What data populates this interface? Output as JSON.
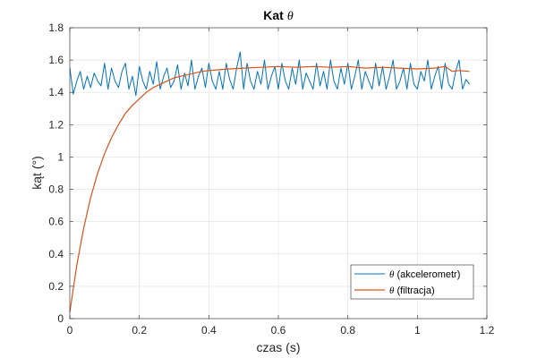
{
  "chart_data": {
    "type": "line",
    "title_main": "Kat",
    "title_symbol": "θ",
    "xlabel": "czas (s)",
    "ylabel": "kąt (°)",
    "xlim": [
      0,
      1.2
    ],
    "ylim": [
      0,
      1.8
    ],
    "xticks": [
      0,
      0.2,
      0.4,
      0.6,
      0.8,
      1,
      1.2
    ],
    "yticks": [
      0,
      0.2,
      0.4,
      0.6,
      0.8,
      1,
      1.2,
      1.4,
      1.6,
      1.8
    ],
    "xtick_labels": [
      "0",
      "0.2",
      "0.4",
      "0.6",
      "0.8",
      "1",
      "1.2"
    ],
    "ytick_labels": [
      "0",
      "0.2",
      "0.4",
      "0.6",
      "0.8",
      "1",
      "1.2",
      "1.4",
      "1.6",
      "1.8"
    ],
    "grid": true,
    "legend_position": "bottom-right",
    "series": [
      {
        "name_symbol": "θ",
        "name_text": " (akcelerometr)",
        "color": "#0072BD",
        "x": [
          0,
          0.01,
          0.02,
          0.03,
          0.04,
          0.05,
          0.06,
          0.07,
          0.08,
          0.09,
          0.1,
          0.11,
          0.12,
          0.13,
          0.14,
          0.15,
          0.16,
          0.17,
          0.18,
          0.19,
          0.2,
          0.21,
          0.22,
          0.23,
          0.24,
          0.25,
          0.26,
          0.27,
          0.28,
          0.29,
          0.3,
          0.31,
          0.32,
          0.33,
          0.34,
          0.35,
          0.36,
          0.37,
          0.38,
          0.39,
          0.4,
          0.41,
          0.42,
          0.43,
          0.44,
          0.45,
          0.46,
          0.47,
          0.48,
          0.49,
          0.5,
          0.51,
          0.52,
          0.53,
          0.54,
          0.55,
          0.56,
          0.57,
          0.58,
          0.59,
          0.6,
          0.61,
          0.62,
          0.63,
          0.64,
          0.65,
          0.66,
          0.67,
          0.68,
          0.69,
          0.7,
          0.71,
          0.72,
          0.73,
          0.74,
          0.75,
          0.76,
          0.77,
          0.78,
          0.79,
          0.8,
          0.81,
          0.82,
          0.83,
          0.84,
          0.85,
          0.86,
          0.87,
          0.88,
          0.89,
          0.9,
          0.91,
          0.92,
          0.93,
          0.94,
          0.95,
          0.96,
          0.97,
          0.98,
          0.99,
          1,
          1.01,
          1.02,
          1.03,
          1.04,
          1.05,
          1.06,
          1.07,
          1.08,
          1.09,
          1.1,
          1.11,
          1.12,
          1.13,
          1.14,
          1.15
        ],
        "y": [
          1.55,
          1.39,
          1.47,
          1.53,
          1.42,
          1.5,
          1.43,
          1.52,
          1.47,
          1.44,
          1.58,
          1.42,
          1.55,
          1.47,
          1.43,
          1.53,
          1.58,
          1.42,
          1.5,
          1.38,
          1.56,
          1.47,
          1.42,
          1.53,
          1.45,
          1.59,
          1.42,
          1.5,
          1.55,
          1.43,
          1.47,
          1.57,
          1.42,
          1.52,
          1.44,
          1.6,
          1.42,
          1.5,
          1.55,
          1.43,
          1.58,
          1.47,
          1.42,
          1.53,
          1.42,
          1.58,
          1.48,
          1.42,
          1.55,
          1.65,
          1.42,
          1.58,
          1.47,
          1.42,
          1.53,
          1.45,
          1.6,
          1.42,
          1.5,
          1.56,
          1.42,
          1.58,
          1.47,
          1.42,
          1.55,
          1.45,
          1.6,
          1.42,
          1.52,
          1.47,
          1.42,
          1.58,
          1.44,
          1.53,
          1.42,
          1.6,
          1.47,
          1.42,
          1.55,
          1.45,
          1.58,
          1.42,
          1.5,
          1.6,
          1.42,
          1.53,
          1.47,
          1.42,
          1.58,
          1.44,
          1.56,
          1.42,
          1.5,
          1.6,
          1.42,
          1.47,
          1.55,
          1.42,
          1.58,
          1.45,
          1.42,
          1.53,
          1.47,
          1.6,
          1.42,
          1.5,
          1.56,
          1.42,
          1.58,
          1.45,
          1.42,
          1.53,
          1.6,
          1.42,
          1.48,
          1.45
        ],
        "width": 1
      },
      {
        "name_symbol": "θ",
        "name_text": " (filtracja)",
        "color": "#D95319",
        "x": [
          0,
          0.02,
          0.04,
          0.06,
          0.08,
          0.1,
          0.12,
          0.14,
          0.16,
          0.18,
          0.2,
          0.22,
          0.24,
          0.26,
          0.28,
          0.3,
          0.32,
          0.34,
          0.36,
          0.38,
          0.4,
          0.43,
          0.46,
          0.5,
          0.55,
          0.6,
          0.65,
          0.7,
          0.75,
          0.8,
          0.85,
          0.9,
          0.95,
          1,
          1.05,
          1.08,
          1.1,
          1.12,
          1.15
        ],
        "y": [
          0.04,
          0.33,
          0.56,
          0.75,
          0.9,
          1.02,
          1.12,
          1.2,
          1.27,
          1.32,
          1.36,
          1.4,
          1.43,
          1.45,
          1.47,
          1.49,
          1.5,
          1.51,
          1.52,
          1.53,
          1.535,
          1.54,
          1.545,
          1.55,
          1.555,
          1.56,
          1.555,
          1.56,
          1.555,
          1.56,
          1.55,
          1.555,
          1.55,
          1.545,
          1.55,
          1.56,
          1.53,
          1.535,
          1.53
        ],
        "width": 1.2
      }
    ]
  }
}
